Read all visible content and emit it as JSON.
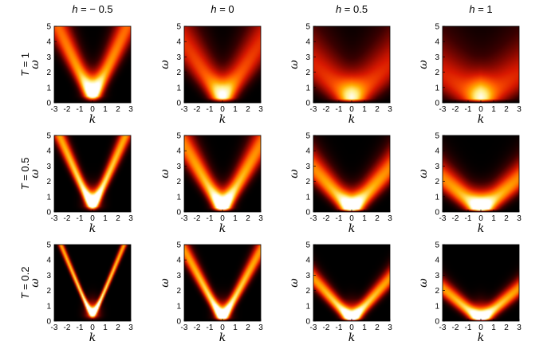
{
  "colormap": {
    "stops": [
      "#000000",
      "#3a0000",
      "#8a0800",
      "#d81800",
      "#ff5a00",
      "#ffaa00",
      "#ffee80",
      "#ffffff"
    ]
  },
  "row_titles": [
    {
      "var": "T",
      "text": " = 1"
    },
    {
      "var": "T",
      "text": " = 0.5"
    },
    {
      "var": "T",
      "text": " = 0.2"
    }
  ],
  "col_titles": [
    {
      "var": "h",
      "text": " = − 0.5"
    },
    {
      "var": "h",
      "text": " = 0"
    },
    {
      "var": "h",
      "text": " = 0.5"
    },
    {
      "var": "h",
      "text": " = 1"
    }
  ],
  "chart_data": {
    "type": "heatmap",
    "xlabel": "k",
    "ylabel": "ω",
    "xlim": [
      -3,
      3
    ],
    "ylim": [
      0,
      5
    ],
    "xticks": [
      "-3",
      "-2",
      "-1",
      "0",
      "1",
      "2",
      "3"
    ],
    "yticks": [
      "0",
      "1",
      "2",
      "3",
      "4",
      "5"
    ],
    "panels": [
      {
        "T": 1,
        "h": -0.5,
        "gap": 0.7,
        "curv": 0.9,
        "width": 0.9,
        "peak": 0.85,
        "cone": 0
      },
      {
        "T": 1,
        "h": 0,
        "gap": 0.5,
        "curv": 0.7,
        "width": 1.2,
        "peak": 0.7,
        "cone": 0.3
      },
      {
        "T": 1,
        "h": 0.5,
        "gap": 0.4,
        "curv": 0.5,
        "width": 1.4,
        "peak": 0.65,
        "cone": 0.6
      },
      {
        "T": 1,
        "h": 1,
        "gap": 0.4,
        "curv": 0.4,
        "width": 1.5,
        "peak": 0.65,
        "cone": 0.8
      },
      {
        "T": 0.5,
        "h": -0.5,
        "gap": 0.6,
        "curv": 0.95,
        "width": 0.5,
        "peak": 1.0,
        "cone": 0
      },
      {
        "T": 0.5,
        "h": 0,
        "gap": 0.4,
        "curv": 0.8,
        "width": 0.8,
        "peak": 0.95,
        "cone": 0.3
      },
      {
        "T": 0.5,
        "h": 0.5,
        "gap": 0.3,
        "curv": 0.6,
        "width": 0.8,
        "peak": 0.95,
        "cone": 0.7
      },
      {
        "T": 0.5,
        "h": 1,
        "gap": 0.3,
        "curv": 0.5,
        "width": 0.8,
        "peak": 0.95,
        "cone": 0.9
      },
      {
        "T": 0.2,
        "h": -0.5,
        "gap": 0.55,
        "curv": 1.0,
        "width": 0.18,
        "peak": 1.0,
        "cone": 0
      },
      {
        "T": 0.2,
        "h": 0,
        "gap": 0.35,
        "curv": 0.85,
        "width": 0.45,
        "peak": 1.0,
        "cone": 0.3
      },
      {
        "T": 0.2,
        "h": 0.5,
        "gap": 0.25,
        "curv": 0.6,
        "width": 0.45,
        "peak": 1.0,
        "cone": 0.75
      },
      {
        "T": 0.2,
        "h": 1,
        "gap": 0.25,
        "curv": 0.5,
        "width": 0.45,
        "peak": 1.0,
        "cone": 0.95
      }
    ]
  }
}
